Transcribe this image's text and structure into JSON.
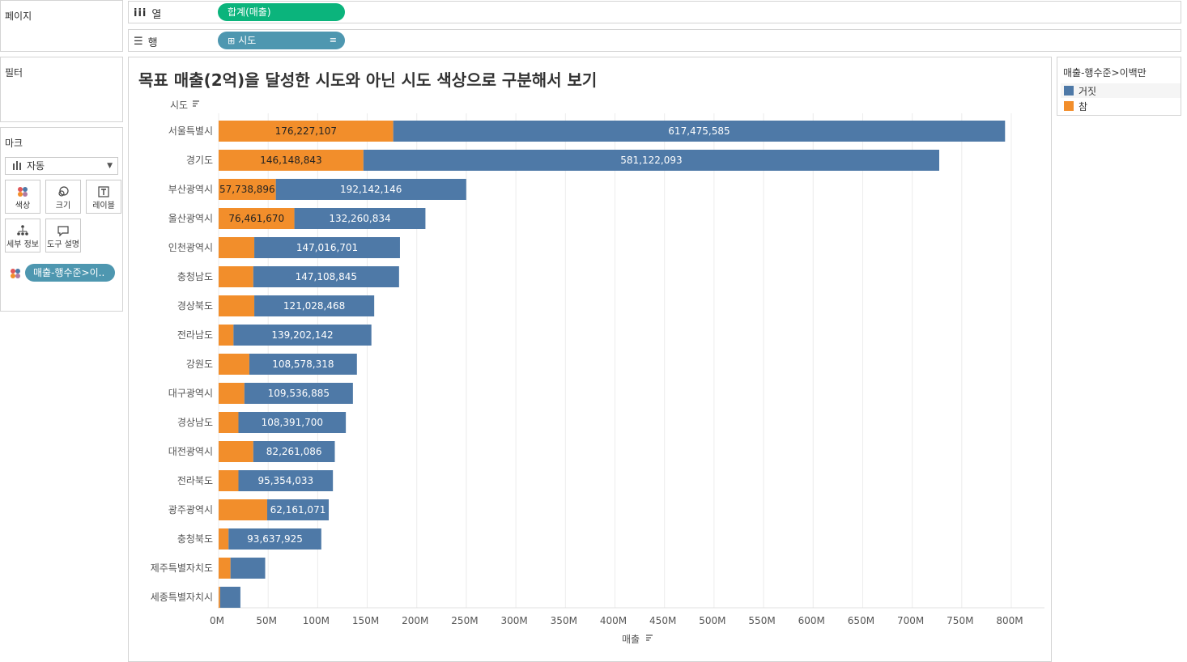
{
  "sidebar": {
    "pages_title": "페이지",
    "filters_title": "필터",
    "marks_title": "마크",
    "mark_type": "자동",
    "mark_buttons": [
      "색상",
      "크기",
      "레이블",
      "세부 정보",
      "도구 설명"
    ],
    "color_field": "매출-행수준>이.."
  },
  "shelves": {
    "columns_label": "열",
    "columns_pill": "합계(매출)",
    "rows_label": "행",
    "rows_pill": "시도"
  },
  "legend": {
    "title": "매출-행수준>이백만",
    "items": [
      {
        "label": "거짓",
        "color": "#4e79a7"
      },
      {
        "label": "참",
        "color": "#f28e2b"
      }
    ]
  },
  "chart_data": {
    "type": "bar",
    "orientation": "horizontal",
    "stacked": true,
    "title": "목표 매출(2억)을 달성한 시도와 아닌 시도 색상으로 구분해서 보기",
    "ylabel": "시도",
    "xlabel": "매출",
    "xlim": [
      0,
      830000000
    ],
    "xticks": [
      0,
      50000000,
      100000000,
      150000000,
      200000000,
      250000000,
      300000000,
      350000000,
      400000000,
      450000000,
      500000000,
      550000000,
      600000000,
      650000000,
      700000000,
      750000000,
      800000000
    ],
    "xtick_labels": [
      "0M",
      "50M",
      "100M",
      "150M",
      "200M",
      "250M",
      "300M",
      "350M",
      "400M",
      "450M",
      "500M",
      "550M",
      "600M",
      "650M",
      "700M",
      "750M",
      "800M"
    ],
    "categories": [
      "서울특별시",
      "경기도",
      "부산광역시",
      "울산광역시",
      "인천광역시",
      "충청남도",
      "경상북도",
      "전라남도",
      "강원도",
      "대구광역시",
      "경상남도",
      "대전광역시",
      "전라북도",
      "광주광역시",
      "충청북도",
      "제주특별자치도",
      "세종특별자치시"
    ],
    "series": [
      {
        "name": "참",
        "color": "#f28e2b",
        "values": [
          176227107,
          146148843,
          57738896,
          76461670,
          36000000,
          35000000,
          36000000,
          15000000,
          31000000,
          26000000,
          20000000,
          35000000,
          20000000,
          49000000,
          10000000,
          12000000,
          1500000
        ],
        "labels": [
          "176,227,107",
          "146,148,843",
          "57,738,896",
          "76,461,670",
          "",
          "",
          "",
          "",
          "",
          "",
          "",
          "",
          "",
          "",
          "",
          "",
          ""
        ]
      },
      {
        "name": "거짓",
        "color": "#4e79a7",
        "values": [
          617475585,
          581122093,
          192142146,
          132260834,
          147016701,
          147108845,
          121028468,
          139202142,
          108578318,
          109536885,
          108391700,
          82261086,
          95354033,
          62161071,
          93637925,
          35000000,
          20500000
        ],
        "labels": [
          "617,475,585",
          "581,122,093",
          "192,142,146",
          "132,260,834",
          "147,016,701",
          "147,108,845",
          "121,028,468",
          "139,202,142",
          "108,578,318",
          "109,536,885",
          "108,391,700",
          "82,261,086",
          "95,354,033",
          "62,161,071",
          "93,637,925",
          "",
          ""
        ]
      }
    ]
  }
}
